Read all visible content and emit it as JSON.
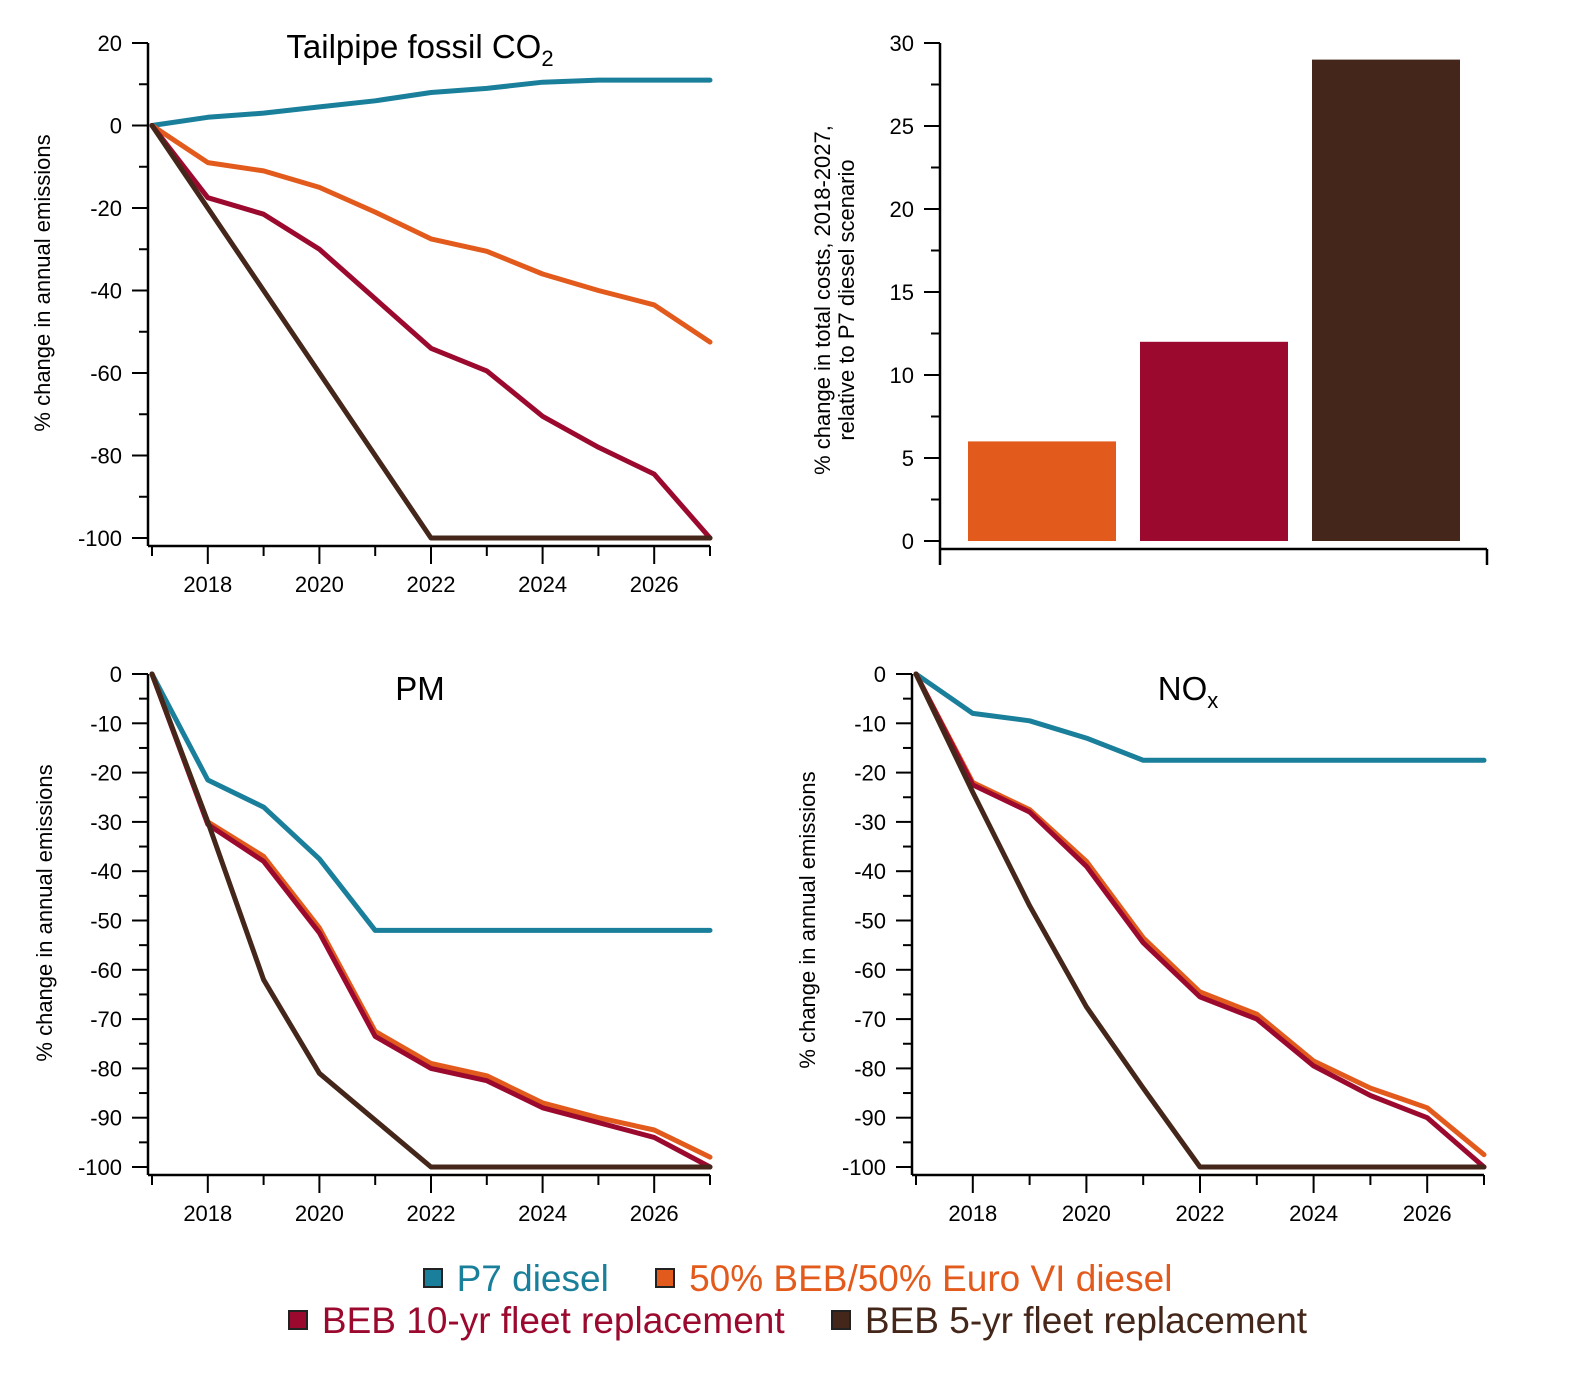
{
  "colors": {
    "p7": "#1a7f9a",
    "half": "#e35b1c",
    "beb10": "#9b0a2e",
    "beb5": "#44271a"
  },
  "legend": {
    "row1": [
      {
        "label": "P7 diesel",
        "color": "#1a7f9a"
      },
      {
        "label": "50% BEB/50% Euro VI diesel",
        "color": "#e35b1c"
      }
    ],
    "row2": [
      {
        "label": "BEB 10-yr fleet replacement",
        "color": "#9b0a2e"
      },
      {
        "label": "BEB 5-yr fleet replacement",
        "color": "#44271a"
      }
    ]
  },
  "chart_data": [
    {
      "id": "co2",
      "type": "line",
      "title": "Tailpipe fossil CO",
      "title_sub": "2",
      "xlabel": "",
      "ylabel": "% change in annual emissions",
      "xlim": [
        2017,
        2027
      ],
      "ylim": [
        -100,
        20
      ],
      "xticks": [
        2018,
        2020,
        2022,
        2024,
        2026
      ],
      "yticks": [
        20,
        0,
        -20,
        -40,
        -60,
        -80,
        -100
      ],
      "x": [
        2017,
        2018,
        2019,
        2020,
        2021,
        2022,
        2023,
        2024,
        2025,
        2026,
        2027
      ],
      "series": [
        {
          "name": "P7 diesel",
          "color": "#1a7f9a",
          "values": [
            0,
            2,
            3,
            4.5,
            6,
            8,
            9,
            10.5,
            11,
            11,
            11
          ]
        },
        {
          "name": "50% BEB/50% Euro VI diesel",
          "color": "#e35b1c",
          "values": [
            0,
            -9,
            -11,
            -15,
            -21,
            -27.5,
            -30.5,
            -36,
            -40,
            -43.5,
            -52.5
          ]
        },
        {
          "name": "BEB 10-yr fleet replacement",
          "color": "#9b0a2e",
          "values": [
            0,
            -17.5,
            -21.5,
            -30,
            -42,
            -54,
            -59.5,
            -70.5,
            -78,
            -84.5,
            -100
          ]
        },
        {
          "name": "BEB 5-yr fleet replacement",
          "color": "#44271a",
          "values": [
            0,
            -20,
            -40,
            -60,
            -80,
            -100,
            -100,
            -100,
            -100,
            -100,
            -100
          ]
        }
      ]
    },
    {
      "id": "cost",
      "type": "bar",
      "title": "",
      "xlabel": "",
      "ylabel": "% change in total costs, 2018-2027,",
      "ylabel2": "relative to P7 diesel scenario",
      "ylim": [
        0,
        30
      ],
      "yticks": [
        0,
        5,
        10,
        15,
        20,
        25,
        30
      ],
      "categories": [
        "50% BEB/50% Euro VI diesel",
        "BEB 10-yr fleet replacement",
        "BEB 5-yr fleet replacement"
      ],
      "values": [
        6,
        12,
        29
      ],
      "colors": [
        "#e35b1c",
        "#9b0a2e",
        "#44271a"
      ]
    },
    {
      "id": "pm",
      "type": "line",
      "title": "PM",
      "title_sub": "",
      "xlabel": "",
      "ylabel": "% change in annual emissions",
      "xlim": [
        2017,
        2027
      ],
      "ylim": [
        -100,
        0
      ],
      "xticks": [
        2018,
        2020,
        2022,
        2024,
        2026
      ],
      "yticks": [
        0,
        -10,
        -20,
        -30,
        -40,
        -50,
        -60,
        -70,
        -80,
        -90,
        -100
      ],
      "x": [
        2017,
        2018,
        2019,
        2020,
        2021,
        2022,
        2023,
        2024,
        2025,
        2026,
        2027
      ],
      "series": [
        {
          "name": "P7 diesel",
          "color": "#1a7f9a",
          "values": [
            0,
            -21.5,
            -27,
            -37.5,
            -52,
            -52,
            -52,
            -52,
            -52,
            -52,
            -52
          ]
        },
        {
          "name": "50% BEB/50% Euro VI diesel",
          "color": "#e35b1c",
          "values": [
            0,
            -30,
            -37,
            -51.5,
            -72.5,
            -79,
            -81.5,
            -87,
            -90,
            -92.5,
            -98
          ]
        },
        {
          "name": "BEB 10-yr fleet replacement",
          "color": "#9b0a2e",
          "values": [
            0,
            -30.5,
            -38,
            -52.5,
            -73.5,
            -80,
            -82.5,
            -88,
            -91,
            -94,
            -100
          ]
        },
        {
          "name": "BEB 5-yr fleet replacement",
          "color": "#44271a",
          "values": [
            0,
            -30,
            -62,
            -81,
            -90.5,
            -100,
            -100,
            -100,
            -100,
            -100,
            -100
          ]
        }
      ]
    },
    {
      "id": "nox",
      "type": "line",
      "title": "NO",
      "title_sub": "x",
      "xlabel": "",
      "ylabel": "% change in annual emissions",
      "xlim": [
        2017,
        2027
      ],
      "ylim": [
        -100,
        0
      ],
      "xticks": [
        2018,
        2020,
        2022,
        2024,
        2026
      ],
      "yticks": [
        0,
        -10,
        -20,
        -30,
        -40,
        -50,
        -60,
        -70,
        -80,
        -90,
        -100
      ],
      "x": [
        2017,
        2018,
        2019,
        2020,
        2021,
        2022,
        2023,
        2024,
        2025,
        2026,
        2027
      ],
      "series": [
        {
          "name": "P7 diesel",
          "color": "#1a7f9a",
          "values": [
            0,
            -8,
            -9.5,
            -13,
            -17.5,
            -17.5,
            -17.5,
            -17.5,
            -17.5,
            -17.5,
            -17.5
          ]
        },
        {
          "name": "50% BEB/50% Euro VI diesel",
          "color": "#e35b1c",
          "values": [
            0,
            -22,
            -27.5,
            -38,
            -53.5,
            -64.5,
            -69,
            -78.5,
            -84,
            -88,
            -97.5
          ]
        },
        {
          "name": "BEB 10-yr fleet replacement",
          "color": "#9b0a2e",
          "values": [
            0,
            -22.5,
            -28,
            -39,
            -54.5,
            -65.5,
            -70,
            -79.5,
            -85.5,
            -90,
            -100
          ]
        },
        {
          "name": "BEB 5-yr fleet replacement",
          "color": "#44271a",
          "values": [
            0,
            -24,
            -47,
            -67.5,
            -84,
            -100,
            -100,
            -100,
            -100,
            -100,
            -100
          ]
        }
      ]
    }
  ]
}
